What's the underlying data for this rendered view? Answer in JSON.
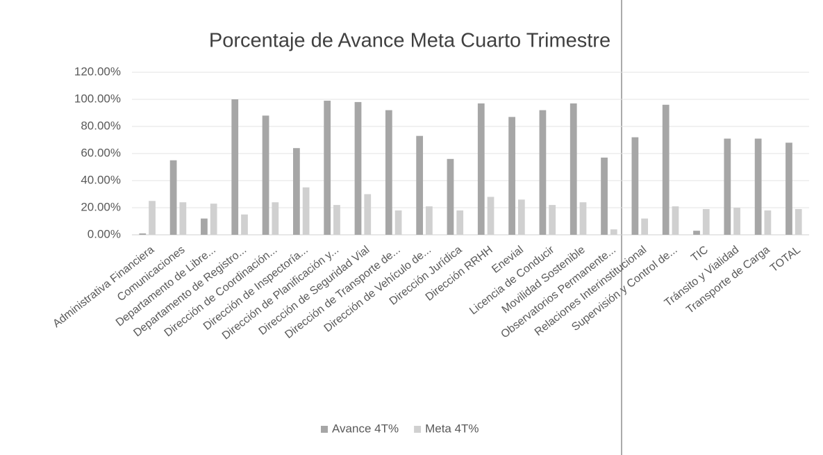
{
  "chart_data": {
    "type": "bar",
    "title": "Porcentaje de Avance Meta Cuarto Trimestre",
    "categories": [
      "Administrativa Financiera",
      "Comunicaciones",
      "Departamento de Libre...",
      "Departamento de Registro...",
      "Dirección de Coordinación...",
      "Dirección de Inspectoría...",
      "Dirección de Planificación y...",
      "Dirección de Seguridad Vial",
      "Dirección de Transporte de...",
      "Dirección de Vehículo de...",
      "Dirección Jurídica",
      "Dirección RRHH",
      "Enevial",
      "Licencia de Conducir",
      "Movilidad Sostenible",
      "Observatorios Permanente...",
      "Relaciones Interinstitucional",
      "Supervisión y Control de...",
      "TIC",
      "Tránsito y Vialidad",
      "Transporte de Carga",
      "TOTAL"
    ],
    "series": [
      {
        "name": "Avance 4T%",
        "color": "#a6a6a6",
        "values": [
          1,
          55,
          12,
          100,
          88,
          64,
          99,
          98,
          92,
          73,
          56,
          97,
          87,
          92,
          97,
          57,
          72,
          96,
          3,
          71,
          71,
          68
        ]
      },
      {
        "name": "Meta 4T%",
        "color": "#d0d0d0",
        "values": [
          25,
          24,
          23,
          15,
          24,
          35,
          22,
          30,
          18,
          21,
          18,
          28,
          26,
          22,
          24,
          4,
          12,
          21,
          19,
          20,
          18,
          19
        ]
      }
    ],
    "ylim": [
      0,
      120
    ],
    "yticks": [
      {
        "value": 0,
        "label": "0.00%"
      },
      {
        "value": 20,
        "label": "20.00%"
      },
      {
        "value": 40,
        "label": "40.00%"
      },
      {
        "value": 60,
        "label": "60.00%"
      },
      {
        "value": 80,
        "label": "80.00%"
      },
      {
        "value": 100,
        "label": "100.00%"
      },
      {
        "value": 120,
        "label": "120.00%"
      }
    ],
    "grid": true,
    "legend": "bottom"
  }
}
